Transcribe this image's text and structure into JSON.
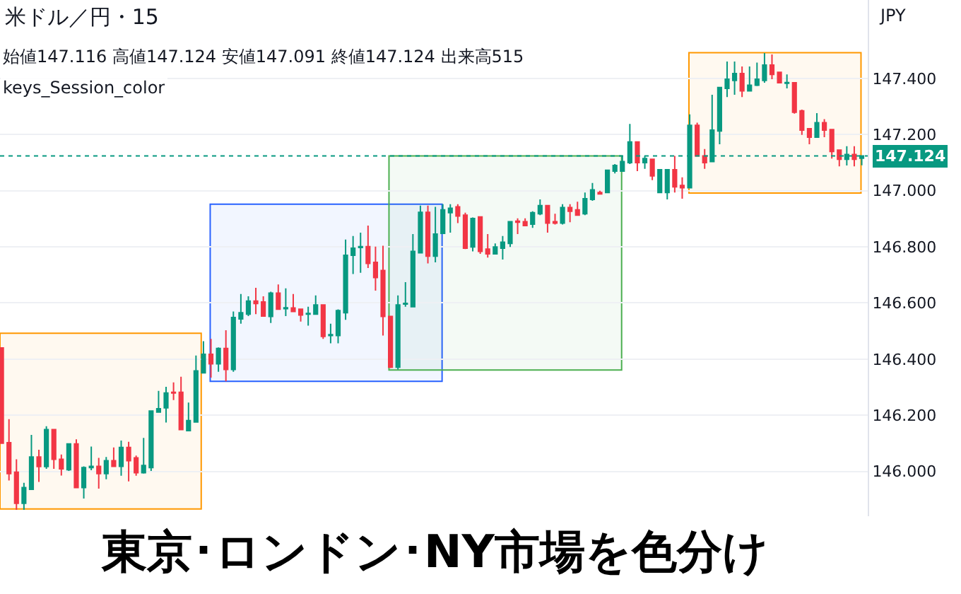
{
  "chart_data": {
    "type": "candlestick",
    "title": "米ドル／円・15",
    "subtitle": "始値147.116 高値147.124 安値147.091 終値147.124 出来高515",
    "annotations": [
      "keys_Session_color",
      "JPY",
      "東京･ロンドン･NY市場を色分け"
    ],
    "categories": [
      null,
      null,
      null,
      null,
      null,
      null,
      null,
      null,
      null,
      null,
      null,
      null,
      null,
      null,
      null,
      null,
      null,
      null,
      null,
      null,
      null,
      null,
      null,
      null,
      null,
      null,
      null,
      null,
      null,
      null,
      null,
      null,
      null,
      null,
      null,
      null,
      null,
      null,
      null,
      null,
      null,
      null,
      null,
      null,
      null,
      null,
      null,
      null,
      null,
      null,
      null,
      null,
      null,
      null,
      null,
      null,
      null,
      null,
      null,
      null,
      null,
      null,
      null,
      null,
      null,
      null,
      null,
      null,
      null,
      null,
      null,
      null,
      null,
      null,
      null,
      null,
      null,
      null,
      null,
      null,
      null,
      null,
      null,
      null,
      null,
      null,
      null,
      null,
      null,
      null,
      null,
      null,
      null,
      null,
      null,
      null,
      null,
      null,
      null,
      null,
      null,
      null,
      null,
      null,
      null,
      null,
      null,
      null,
      null,
      null,
      null,
      null,
      null,
      null,
      null,
      null
    ],
    "ohlc": [
      [
        146.44,
        146.44,
        146.1,
        146.1
      ],
      [
        146.102,
        146.186,
        145.967,
        145.992
      ],
      [
        145.997,
        146.043,
        145.863,
        145.886
      ],
      [
        145.886,
        145.959,
        145.863,
        145.942
      ],
      [
        145.936,
        146.13,
        145.936,
        146.051
      ],
      [
        146.051,
        146.077,
        145.962,
        146.017
      ],
      [
        146.017,
        146.161,
        146.009,
        146.149
      ],
      [
        146.149,
        146.149,
        146.009,
        146.043
      ],
      [
        146.043,
        146.06,
        145.985,
        146.009
      ],
      [
        146.006,
        146.098,
        146.001,
        146.098
      ],
      [
        146.098,
        146.114,
        145.942,
        145.942
      ],
      [
        145.942,
        146.018,
        145.903,
        146.013
      ],
      [
        146.013,
        146.088,
        146.004,
        146.018
      ],
      [
        146.018,
        146.048,
        145.938,
        145.992
      ],
      [
        145.992,
        146.051,
        145.972,
        146.038
      ],
      [
        146.038,
        146.085,
        146.018,
        146.018
      ],
      [
        146.018,
        146.11,
        145.984,
        146.085
      ],
      [
        146.085,
        146.105,
        145.964,
        146.038
      ],
      [
        146.048,
        146.056,
        145.984,
        145.995
      ],
      [
        145.995,
        146.119,
        145.992,
        146.021
      ],
      [
        146.013,
        146.215,
        146.001,
        146.215
      ],
      [
        146.211,
        146.287,
        146.211,
        146.223
      ],
      [
        146.226,
        146.301,
        146.174,
        146.279
      ],
      [
        146.282,
        146.317,
        146.254,
        146.279
      ],
      [
        146.282,
        146.337,
        146.149,
        146.149
      ],
      [
        146.145,
        146.245,
        146.145,
        146.181
      ],
      [
        146.176,
        146.413,
        146.176,
        146.358
      ],
      [
        146.351,
        146.464,
        146.351,
        146.417
      ],
      [
        146.417,
        146.472,
        146.334,
        146.383
      ],
      [
        146.383,
        146.442,
        146.355,
        146.438
      ],
      [
        146.438,
        146.503,
        146.321,
        146.363
      ],
      [
        146.363,
        146.57,
        146.355,
        146.548
      ],
      [
        146.543,
        146.632,
        146.526,
        146.565
      ],
      [
        146.56,
        146.624,
        146.553,
        146.607
      ],
      [
        146.607,
        146.654,
        146.56,
        146.598
      ],
      [
        146.604,
        146.624,
        146.553,
        146.553
      ],
      [
        146.552,
        146.64,
        146.529,
        146.635
      ],
      [
        146.635,
        146.666,
        146.578,
        146.578
      ],
      [
        146.58,
        146.652,
        146.553,
        146.583
      ],
      [
        146.582,
        146.632,
        146.57,
        146.57
      ],
      [
        146.578,
        146.578,
        146.534,
        146.557
      ],
      [
        146.56,
        146.587,
        146.519,
        146.563
      ],
      [
        146.56,
        146.627,
        146.56,
        146.593
      ],
      [
        146.593,
        146.593,
        146.472,
        146.481
      ],
      [
        146.484,
        146.526,
        146.456,
        146.487
      ],
      [
        146.484,
        146.577,
        146.456,
        146.573
      ],
      [
        146.565,
        146.826,
        146.54,
        146.77
      ],
      [
        146.77,
        146.839,
        146.703,
        146.795
      ],
      [
        146.798,
        146.851,
        146.708,
        146.801
      ],
      [
        146.801,
        146.876,
        146.725,
        146.741
      ],
      [
        146.745,
        146.801,
        146.644,
        146.691
      ],
      [
        146.716,
        146.804,
        146.484,
        146.552
      ],
      [
        146.552,
        146.552,
        146.368,
        146.371
      ],
      [
        146.371,
        146.627,
        146.363,
        146.593
      ],
      [
        146.596,
        146.674,
        146.587,
        146.599
      ],
      [
        146.587,
        146.846,
        146.587,
        146.784
      ],
      [
        146.779,
        146.947,
        146.779,
        146.923
      ],
      [
        146.923,
        146.947,
        146.741,
        146.767
      ],
      [
        146.767,
        146.943,
        146.745,
        146.846
      ],
      [
        146.848,
        146.952,
        146.848,
        146.932
      ],
      [
        146.922,
        146.952,
        146.851,
        146.938
      ],
      [
        146.943,
        146.952,
        146.885,
        146.91
      ],
      [
        146.913,
        146.922,
        146.792,
        146.795
      ],
      [
        146.8,
        146.905,
        146.784,
        146.901
      ],
      [
        146.907,
        146.907,
        146.775,
        146.784
      ],
      [
        146.792,
        146.846,
        146.762,
        146.775
      ],
      [
        146.775,
        146.812,
        146.775,
        146.8
      ],
      [
        146.795,
        146.839,
        146.755,
        146.817
      ],
      [
        146.812,
        146.89,
        146.8,
        146.89
      ],
      [
        146.892,
        146.902,
        146.846,
        146.888
      ],
      [
        146.89,
        146.902,
        146.876,
        146.876
      ],
      [
        146.881,
        146.927,
        146.868,
        146.922
      ],
      [
        146.918,
        146.969,
        146.913,
        146.947
      ],
      [
        146.947,
        146.947,
        146.851,
        146.885
      ],
      [
        146.89,
        146.918,
        146.88,
        146.885
      ],
      [
        146.885,
        146.952,
        146.88,
        146.94
      ],
      [
        146.94,
        146.952,
        146.888,
        146.927
      ],
      [
        146.932,
        146.961,
        146.913,
        146.913
      ],
      [
        146.918,
        146.994,
        146.913,
        146.972
      ],
      [
        146.969,
        147.028,
        146.964,
        147.003
      ],
      [
        146.994,
        147.0,
        146.986,
        146.989
      ],
      [
        146.994,
        147.073,
        146.994,
        147.073
      ],
      [
        147.07,
        147.095,
        147.062,
        147.09
      ],
      [
        147.07,
        147.125,
        147.07,
        147.104
      ],
      [
        147.1,
        147.238,
        147.095,
        147.174
      ],
      [
        147.174,
        147.174,
        147.07,
        147.1
      ],
      [
        147.1,
        147.125,
        147.078,
        147.115
      ],
      [
        147.112,
        147.112,
        147.038,
        147.053
      ],
      [
        146.994,
        147.075,
        146.994,
        147.075
      ],
      [
        146.994,
        147.075,
        146.969,
        147.075
      ],
      [
        147.075,
        147.124,
        146.994,
        147.014
      ],
      [
        147.019,
        147.048,
        146.972,
        147.011
      ],
      [
        147.011,
        147.272,
        147.011,
        147.233
      ],
      [
        147.233,
        147.243,
        147.124,
        147.124
      ],
      [
        147.124,
        147.149,
        147.078,
        147.1
      ],
      [
        147.104,
        147.342,
        147.104,
        147.216
      ],
      [
        147.213,
        147.368,
        147.166,
        147.368
      ],
      [
        147.365,
        147.461,
        147.334,
        147.398
      ],
      [
        147.393,
        147.461,
        147.342,
        147.418
      ],
      [
        147.418,
        147.443,
        147.334,
        147.356
      ],
      [
        147.356,
        147.443,
        147.356,
        147.376
      ],
      [
        147.376,
        147.457,
        147.373,
        147.398
      ],
      [
        147.393,
        147.491,
        147.385,
        147.448
      ],
      [
        147.448,
        147.486,
        147.398,
        147.415
      ],
      [
        147.422,
        147.422,
        147.385,
        147.385
      ],
      [
        147.383,
        147.415,
        147.365,
        147.386
      ],
      [
        147.385,
        147.385,
        147.275,
        147.28
      ],
      [
        147.285,
        147.289,
        147.199,
        147.216
      ],
      [
        147.221,
        147.221,
        147.166,
        147.191
      ],
      [
        147.191,
        147.277,
        147.191,
        147.243
      ],
      [
        147.243,
        147.255,
        147.191,
        147.216
      ],
      [
        147.218,
        147.218,
        147.115,
        147.14
      ],
      [
        147.145,
        147.145,
        147.087,
        147.112
      ],
      [
        147.112,
        147.159,
        147.09,
        147.129
      ],
      [
        147.129,
        147.159,
        147.087,
        147.112
      ],
      [
        147.116,
        147.124,
        147.091,
        147.124
      ]
    ],
    "colors": [
      "#f23645",
      "#f23645",
      "#f23645",
      "#089981",
      "#089981",
      "#f23645",
      "#089981",
      "#f23645",
      "#f23645",
      "#089981",
      "#f23645",
      "#089981",
      "#089981",
      "#f23645",
      "#089981",
      "#f23645",
      "#089981",
      "#f23645",
      "#f23645",
      "#089981",
      "#089981",
      "#089981",
      "#089981",
      "#f23645",
      "#f23645",
      "#089981",
      "#089981",
      "#089981",
      "#f23645",
      "#089981",
      "#f23645",
      "#089981",
      "#089981",
      "#089981",
      "#f23645",
      "#f23645",
      "#089981",
      "#f23645",
      "#089981",
      "#f23645",
      "#f23645",
      "#089981",
      "#089981",
      "#f23645",
      "#089981",
      "#089981",
      "#089981",
      "#089981",
      "#089981",
      "#f23645",
      "#f23645",
      "#f23645",
      "#f23645",
      "#089981",
      "#089981",
      "#089981",
      "#089981",
      "#f23645",
      "#089981",
      "#089981",
      "#089981",
      "#f23645",
      "#f23645",
      "#089981",
      "#f23645",
      "#f23645",
      "#089981",
      "#089981",
      "#089981",
      "#f23645",
      "#f23645",
      "#089981",
      "#089981",
      "#f23645",
      "#f23645",
      "#089981",
      "#f23645",
      "#f23645",
      "#089981",
      "#089981",
      "#f23645",
      "#089981",
      "#089981",
      "#089981",
      "#089981",
      "#f23645",
      "#089981",
      "#f23645",
      "#089981",
      "#089981",
      "#f23645",
      "#f23645",
      "#089981",
      "#f23645",
      "#f23645",
      "#089981",
      "#089981",
      "#089981",
      "#089981",
      "#f23645",
      "#089981",
      "#089981",
      "#089981",
      "#f23645",
      "#f23645",
      "#089981",
      "#f23645",
      "#f23645",
      "#f23645",
      "#089981",
      "#f23645",
      "#f23645",
      "#f23645",
      "#089981",
      "#f23645",
      "#089981"
    ],
    "ylim": [
      145.84,
      147.68
    ],
    "yticks": [
      {
        "value": 146.0,
        "label": "146.000"
      },
      {
        "value": 146.2,
        "label": "146.200"
      },
      {
        "value": 146.4,
        "label": "146.400"
      },
      {
        "value": 146.6,
        "label": "146.600"
      },
      {
        "value": 146.8,
        "label": "146.800"
      },
      {
        "value": 147.0,
        "label": "147.000"
      },
      {
        "value": 147.2,
        "label": "147.200"
      },
      {
        "value": 147.4,
        "label": "147.400"
      }
    ],
    "tick_labels": "y",
    "grid": "y",
    "legend": false,
    "ref_lines": [
      {
        "axis": "y",
        "value": 147.124,
        "label": "147.124",
        "color": "#089981",
        "line_style": "dotted"
      }
    ],
    "bands": [
      {
        "axis": "y",
        "from": 145.866,
        "to": 146.492,
        "color": "#ff9800"
      },
      {
        "axis": "y",
        "from": 146.321,
        "to": 146.952,
        "color": "#2962ff"
      },
      {
        "axis": "y",
        "from": 146.361,
        "to": 147.124,
        "color": "#4caf50"
      },
      {
        "axis": "y",
        "from": 146.992,
        "to": 147.492,
        "color": "#ff9800"
      }
    ]
  }
}
